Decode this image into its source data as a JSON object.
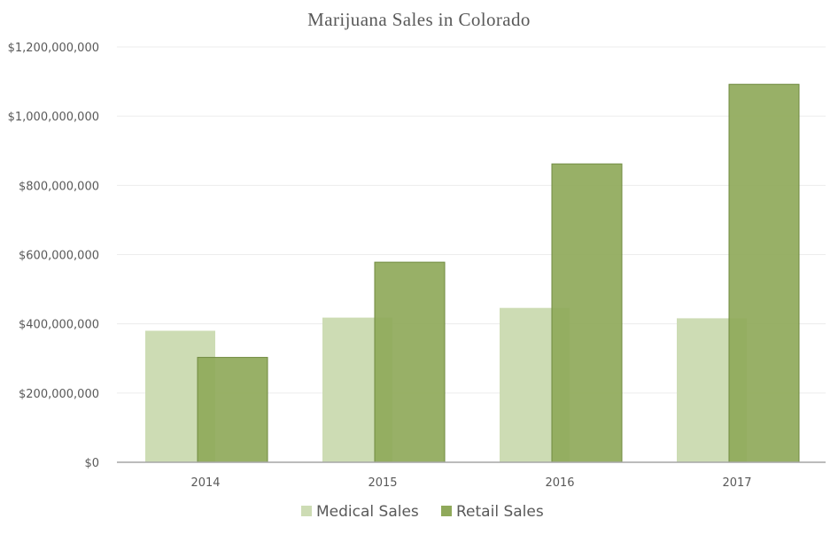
{
  "chart_data": {
    "type": "bar",
    "title": "Marijuana Sales in Colorado",
    "categories": [
      "2014",
      "2015",
      "2016",
      "2017"
    ],
    "series": [
      {
        "name": "Medical Sales",
        "values": [
          380000000,
          418000000,
          446000000,
          416000000
        ],
        "color": "#cddcb4"
      },
      {
        "name": "Retail Sales",
        "values": [
          303000000,
          578000000,
          862000000,
          1092000000
        ],
        "color": "#8fa95a"
      }
    ],
    "ylim": [
      0,
      1200000000
    ],
    "yticks": [
      0,
      200000000,
      400000000,
      600000000,
      800000000,
      1000000000,
      1200000000
    ],
    "ytick_labels": [
      "$0",
      "$200,000,000",
      "$400,000,000",
      "$600,000,000",
      "$800,000,000",
      "$1,000,000,000",
      "$1,200,000,000"
    ],
    "xlabel": "",
    "ylabel": "",
    "grid": true,
    "legend_position": "bottom"
  },
  "colors": {
    "axis": "#a6a6a6",
    "grid": "#ececec",
    "text": "#595959",
    "retail_stroke": "#6f8a3f"
  }
}
